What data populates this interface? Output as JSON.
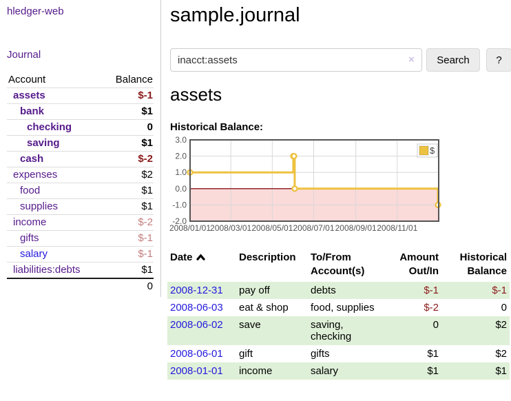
{
  "colors": {
    "accent_purple": "#551a8b",
    "link_blue": "#2319dc",
    "negative_strong": "#8b1a1a",
    "negative_soft": "#c47e7e",
    "stripe_green": "#dff0d8",
    "chart_line": "#edc240",
    "chart_negative_fill": "#fbdada",
    "chart_zero_line": "#8b1515",
    "chart_grid": "#d8d8d8",
    "chart_border": "#545454"
  },
  "sidebar": {
    "brand": "hledger-web",
    "nav_journal": "Journal",
    "table": {
      "account_header": "Account",
      "balance_header": "Balance",
      "rows": [
        {
          "name": "assets",
          "indent": 1,
          "bold": true,
          "link_color": "purple",
          "balance": "$-1",
          "balance_class": "neg-strong"
        },
        {
          "name": "bank",
          "indent": 2,
          "bold": true,
          "link_color": "purple",
          "balance": "$1",
          "balance_class": ""
        },
        {
          "name": "checking",
          "indent": 3,
          "bold": true,
          "link_color": "purple",
          "balance": "0",
          "balance_class": ""
        },
        {
          "name": "saving",
          "indent": 3,
          "bold": true,
          "link_color": "purple",
          "balance": "$1",
          "balance_class": ""
        },
        {
          "name": "cash",
          "indent": 2,
          "bold": true,
          "link_color": "purple",
          "balance": "$-2",
          "balance_class": "neg-strong"
        },
        {
          "name": "expenses",
          "indent": 1,
          "bold": false,
          "link_color": "purple",
          "balance": "$2",
          "balance_class": ""
        },
        {
          "name": "food",
          "indent": 2,
          "bold": false,
          "link_color": "purple",
          "balance": "$1",
          "balance_class": ""
        },
        {
          "name": "supplies",
          "indent": 2,
          "bold": false,
          "link_color": "purple",
          "balance": "$1",
          "balance_class": ""
        },
        {
          "name": "income",
          "indent": 1,
          "bold": false,
          "link_color": "purple",
          "balance": "$-2",
          "balance_class": "neg-soft"
        },
        {
          "name": "gifts",
          "indent": 2,
          "bold": false,
          "link_color": "purple",
          "balance": "$-1",
          "balance_class": "neg-soft"
        },
        {
          "name": "salary",
          "indent": 2,
          "bold": false,
          "link_color": "blue",
          "balance": "$-1",
          "balance_class": "neg-soft"
        },
        {
          "name": "liabilities:debts",
          "indent": 1,
          "bold": false,
          "link_color": "purple",
          "balance": "$1",
          "balance_class": ""
        }
      ],
      "total": "0"
    }
  },
  "main": {
    "title": "sample.journal",
    "search": {
      "value": "inacct:assets",
      "clear_icon": "×",
      "search_button": "Search",
      "help_button": "?"
    },
    "account_heading": "assets",
    "chart_section_label": "Historical Balance:"
  },
  "chart_data": {
    "type": "line",
    "title": "Historical Balance:",
    "steps": true,
    "series": [
      {
        "name": "$",
        "points": [
          [
            "2008-01-01",
            1
          ],
          [
            "2008-06-01",
            2
          ],
          [
            "2008-06-02",
            2
          ],
          [
            "2008-06-03",
            0
          ],
          [
            "2008-12-31",
            -1
          ]
        ]
      }
    ],
    "xrange": [
      "2008-01-01",
      "2009-01-01"
    ],
    "ylim": [
      -2,
      3
    ],
    "yticks": [
      "3.0",
      "2.0",
      "1.0",
      "0.0",
      "-1.0",
      "-2.0"
    ],
    "xticks": [
      "2008/01/01",
      "2008/03/01",
      "2008/05/01",
      "2008/07/01",
      "2008/09/01",
      "2008/11/01"
    ],
    "legend_position": "top-right",
    "grid": true,
    "negative_region_shaded": true
  },
  "register": {
    "headers": [
      "Date",
      "Description",
      "To/From Account(s)",
      "Amount Out/In",
      "Historical Balance"
    ],
    "rows": [
      {
        "date": "2008-12-31",
        "description": "pay off",
        "accounts": "debts",
        "amount": "$-1",
        "amount_class": "neg-strong",
        "balance": "$-1",
        "balance_class": "neg-strong"
      },
      {
        "date": "2008-06-03",
        "description": "eat & shop",
        "accounts": "food, supplies",
        "amount": "$-2",
        "amount_class": "neg-strong",
        "balance": "0",
        "balance_class": ""
      },
      {
        "date": "2008-06-02",
        "description": "save",
        "accounts": "saving, checking",
        "amount": "0",
        "amount_class": "",
        "balance": "$2",
        "balance_class": ""
      },
      {
        "date": "2008-06-01",
        "description": "gift",
        "accounts": "gifts",
        "amount": "$1",
        "amount_class": "",
        "balance": "$2",
        "balance_class": ""
      },
      {
        "date": "2008-01-01",
        "description": "income",
        "accounts": "salary",
        "amount": "$1",
        "amount_class": "",
        "balance": "$1",
        "balance_class": ""
      }
    ]
  }
}
